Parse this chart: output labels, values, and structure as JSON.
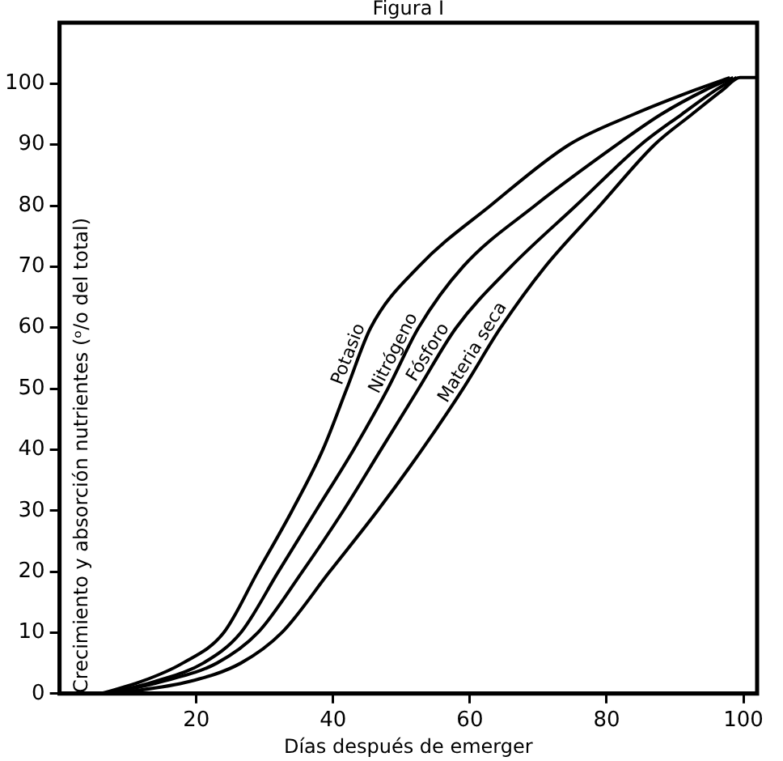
{
  "chart_data": {
    "type": "line",
    "title": "Figura I",
    "xlabel": "Días después de emerger",
    "ylabel": "Crecimiento y absorción nutrientes (ᵒ/o del total)",
    "xlim": [
      0,
      102
    ],
    "xticks": [
      20,
      40,
      60,
      80,
      100
    ],
    "ylim": [
      0,
      110
    ],
    "yticks": [
      0,
      10,
      20,
      30,
      40,
      50,
      60,
      70,
      80,
      90,
      100
    ],
    "grid": false,
    "legend": false,
    "marker": "none",
    "line_style": "solid",
    "series": [
      {
        "name": "Potasio",
        "color": "#000000",
        "x": [
          6,
          12,
          18,
          24,
          29,
          34,
          38.5,
          42,
          45.5,
          52.5,
          63,
          74.5,
          84,
          93,
          98
        ],
        "values": [
          0,
          2,
          5,
          10,
          20,
          30,
          40,
          50,
          60,
          70,
          80,
          90,
          95,
          99,
          101
        ]
      },
      {
        "name": "Nitrógeno",
        "color": "#000000",
        "x": [
          7,
          14,
          21,
          26.5,
          32,
          37.5,
          43,
          48,
          52.5,
          59,
          69.5,
          81.5,
          88,
          94.5,
          98.5
        ],
        "values": [
          0,
          2,
          5,
          10,
          20,
          30,
          40,
          50,
          60,
          70,
          80,
          90,
          95,
          99,
          101
        ]
      },
      {
        "name": "Fósforo",
        "color": "#000000",
        "x": [
          7,
          15,
          23,
          29,
          35.5,
          41.5,
          47,
          52.5,
          58,
          66,
          75.5,
          85,
          91,
          96,
          99
        ],
        "values": [
          0,
          2,
          5,
          10,
          20,
          30,
          40,
          50,
          60,
          70,
          80,
          90,
          95,
          99,
          101
        ]
      },
      {
        "name": "Materia seca",
        "color": "#000000",
        "x": [
          8,
          19,
          26.5,
          32.5,
          39.5,
          46.5,
          53,
          59,
          64.5,
          71,
          79,
          87,
          92.5,
          97,
          99.5,
          102
        ],
        "values": [
          0,
          2,
          5,
          10,
          20,
          30,
          40,
          50,
          60,
          70,
          80,
          90,
          95,
          99,
          101,
          101
        ]
      }
    ]
  }
}
